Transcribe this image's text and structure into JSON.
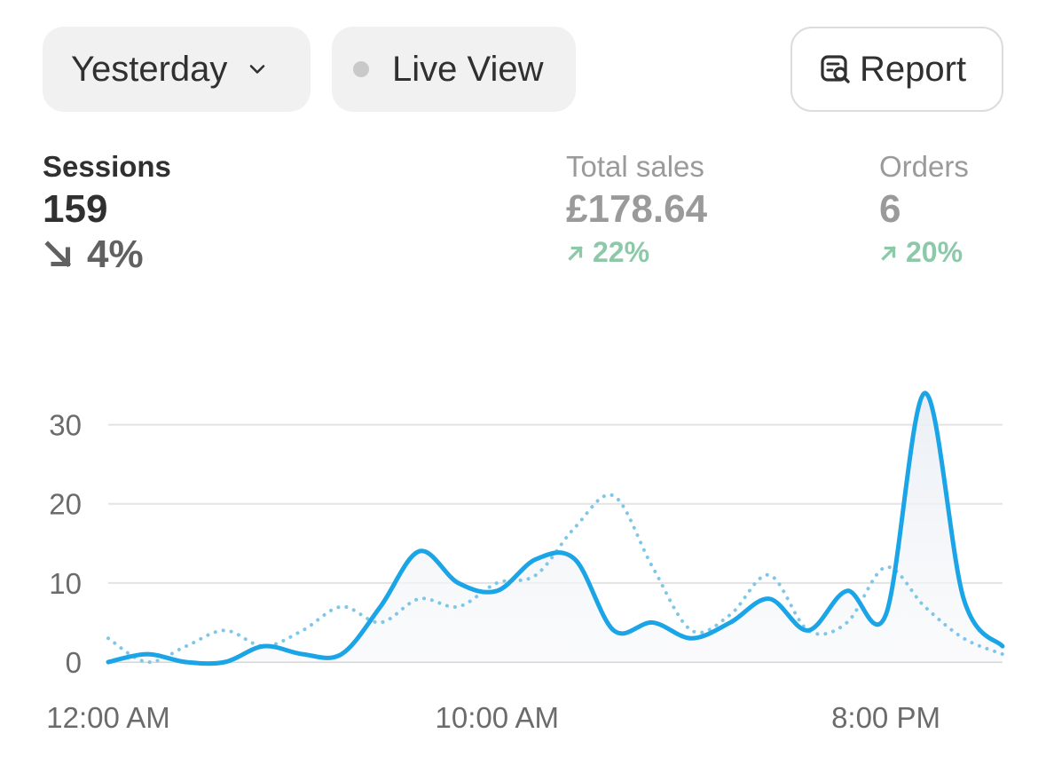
{
  "controls": {
    "date_range": "Yesterday",
    "live_view": "Live View",
    "report": "Report"
  },
  "icons": {
    "date_chevron": "chevron-down-icon",
    "live_dot": "status-dot-icon",
    "report": "report-search-icon",
    "sessions_trend": "arrow-down-right-icon",
    "sales_trend": "arrow-up-right-icon",
    "orders_trend": "arrow-up-right-icon"
  },
  "metrics": {
    "sessions": {
      "label": "Sessions",
      "value": "159",
      "change": "4%",
      "direction": "down"
    },
    "total_sales": {
      "label": "Total sales",
      "value": "£178.64",
      "change": "22%",
      "direction": "up"
    },
    "orders": {
      "label": "Orders",
      "value": "6",
      "change": "20%",
      "direction": "up"
    }
  },
  "colors": {
    "current_series": "#1ba5e6",
    "comparison_series": "#7fc7e8",
    "positive_change": "#8cc9a9",
    "negative_change": "#616161",
    "gridline": "#e3e3e3"
  },
  "chart_data": {
    "type": "line",
    "x_tick_labels": [
      "12:00 AM",
      "10:00 AM",
      "8:00 PM"
    ],
    "x_tick_indices": [
      0,
      10,
      20
    ],
    "y_ticks": [
      0,
      10,
      20,
      30
    ],
    "ylim": [
      0,
      35
    ],
    "xlim": [
      0,
      23
    ],
    "grid": true,
    "series": [
      {
        "style": "solid",
        "x": [
          0,
          1,
          2,
          3,
          4,
          5,
          6,
          7,
          8,
          9,
          10,
          11,
          12,
          13,
          14,
          15,
          16,
          17,
          18,
          19,
          20,
          21,
          22,
          23
        ],
        "values": [
          0,
          1,
          0,
          0,
          2,
          1,
          1,
          7,
          14,
          10,
          9,
          13,
          13,
          4,
          5,
          3,
          5,
          8,
          4,
          9,
          6,
          34,
          8,
          2
        ]
      },
      {
        "style": "dotted",
        "x": [
          0,
          1,
          2,
          3,
          4,
          5,
          6,
          7,
          8,
          9,
          10,
          11,
          12,
          13,
          14,
          15,
          16,
          17,
          18,
          19,
          20,
          21,
          22,
          23
        ],
        "values": [
          3,
          0,
          2,
          4,
          2,
          4,
          7,
          5,
          8,
          7,
          10,
          11,
          17,
          21,
          12,
          4,
          6,
          11,
          4,
          5,
          12,
          7,
          3,
          1
        ]
      }
    ]
  }
}
